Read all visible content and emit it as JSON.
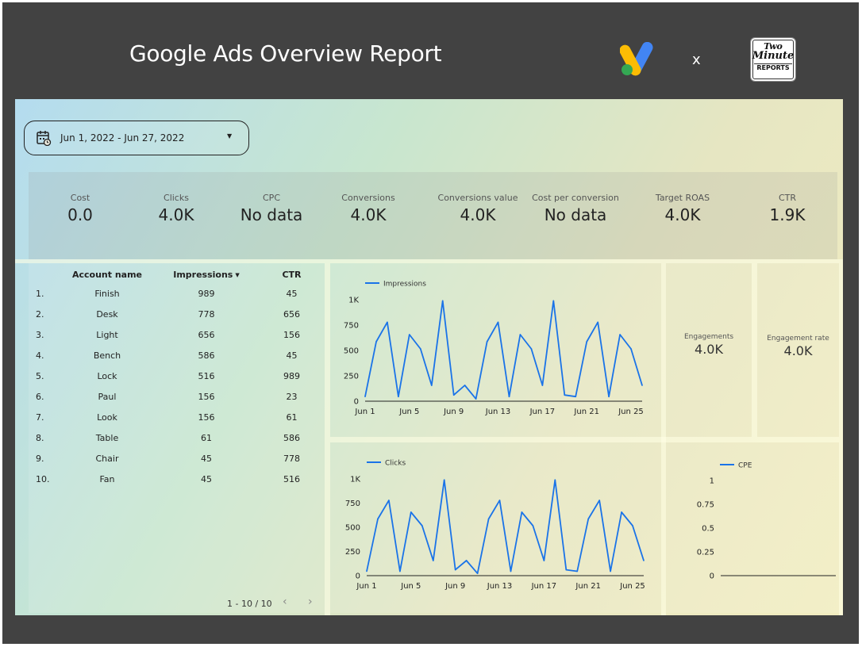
{
  "header": {
    "title": "Google Ads Overview Report",
    "separator": "x",
    "partner_logo": {
      "line1": "Two",
      "line2": "Minute",
      "line3": "REPORTS"
    }
  },
  "date_range": {
    "label": "Jun 1, 2022 - Jun 27, 2022"
  },
  "kpis": [
    {
      "label": "Cost",
      "value": "0.0"
    },
    {
      "label": "Clicks",
      "value": "4.0K"
    },
    {
      "label": "CPC",
      "value": "No data"
    },
    {
      "label": "Conversions",
      "value": "4.0K"
    },
    {
      "label": "Conversions value",
      "value": "4.0K"
    },
    {
      "label": "Cost per conversion",
      "value": "No data"
    },
    {
      "label": "Target ROAS",
      "value": "4.0K"
    },
    {
      "label": "CTR",
      "value": "1.9K"
    }
  ],
  "table": {
    "headers": {
      "account": "Account name",
      "impressions": "Impressions",
      "ctr": "CTR"
    },
    "rows": [
      {
        "idx": "1.",
        "name": "Finish",
        "impressions": "989",
        "ctr": "45"
      },
      {
        "idx": "2.",
        "name": "Desk",
        "impressions": "778",
        "ctr": "656"
      },
      {
        "idx": "3.",
        "name": "Light",
        "impressions": "656",
        "ctr": "156"
      },
      {
        "idx": "4.",
        "name": "Bench",
        "impressions": "586",
        "ctr": "45"
      },
      {
        "idx": "5.",
        "name": "Lock",
        "impressions": "516",
        "ctr": "989"
      },
      {
        "idx": "6.",
        "name": "Paul",
        "impressions": "156",
        "ctr": "23"
      },
      {
        "idx": "7.",
        "name": "Look",
        "impressions": "156",
        "ctr": "61"
      },
      {
        "idx": "8.",
        "name": "Table",
        "impressions": "61",
        "ctr": "586"
      },
      {
        "idx": "9.",
        "name": "Chair",
        "impressions": "45",
        "ctr": "778"
      },
      {
        "idx": "10.",
        "name": "Fan",
        "impressions": "45",
        "ctr": "516"
      }
    ],
    "pagination": "1 - 10 / 10"
  },
  "engagements": {
    "label": "Engagements",
    "value": "4.0K"
  },
  "engagement_rate": {
    "label": "Engagement rate",
    "value": "4.0K"
  },
  "colors": {
    "line": "#1a73e8",
    "frame": "#424242"
  },
  "chart_data": [
    {
      "type": "line",
      "series": [
        {
          "name": "Impressions",
          "values": [
            45,
            586,
            778,
            45,
            656,
            516,
            156,
            989,
            61,
            156,
            23,
            586,
            778,
            45,
            656,
            516,
            156,
            989,
            61,
            45,
            586,
            778,
            45,
            656,
            516,
            156
          ]
        }
      ],
      "x": [
        "Jun 1",
        "Jun 2",
        "Jun 3",
        "Jun 4",
        "Jun 5",
        "Jun 6",
        "Jun 7",
        "Jun 8",
        "Jun 9",
        "Jun 10",
        "Jun 11",
        "Jun 12",
        "Jun 13",
        "Jun 14",
        "Jun 15",
        "Jun 16",
        "Jun 17",
        "Jun 18",
        "Jun 19",
        "Jun 20",
        "Jun 21",
        "Jun 22",
        "Jun 23",
        "Jun 24",
        "Jun 25",
        "Jun 26"
      ],
      "x_tick_labels": [
        "Jun 1",
        "Jun 5",
        "Jun 9",
        "Jun 13",
        "Jun 17",
        "Jun 21",
        "Jun 25"
      ],
      "y_tick_labels": [
        "0",
        "250",
        "500",
        "750",
        "1K"
      ],
      "ylim": [
        0,
        1000
      ],
      "legend": "top-left",
      "grid": false
    },
    {
      "type": "line",
      "series": [
        {
          "name": "Clicks",
          "values": [
            45,
            586,
            778,
            45,
            656,
            516,
            156,
            989,
            61,
            156,
            23,
            586,
            778,
            45,
            656,
            516,
            156,
            989,
            61,
            45,
            586,
            778,
            45,
            656,
            516,
            156
          ]
        }
      ],
      "x": [
        "Jun 1",
        "Jun 2",
        "Jun 3",
        "Jun 4",
        "Jun 5",
        "Jun 6",
        "Jun 7",
        "Jun 8",
        "Jun 9",
        "Jun 10",
        "Jun 11",
        "Jun 12",
        "Jun 13",
        "Jun 14",
        "Jun 15",
        "Jun 16",
        "Jun 17",
        "Jun 18",
        "Jun 19",
        "Jun 20",
        "Jun 21",
        "Jun 22",
        "Jun 23",
        "Jun 24",
        "Jun 25",
        "Jun 26"
      ],
      "x_tick_labels": [
        "Jun 1",
        "Jun 5",
        "Jun 9",
        "Jun 13",
        "Jun 17",
        "Jun 21",
        "Jun 25"
      ],
      "y_tick_labels": [
        "0",
        "250",
        "500",
        "750",
        "1K"
      ],
      "ylim": [
        0,
        1000
      ],
      "legend": "top-left",
      "grid": false
    },
    {
      "type": "line",
      "series": [
        {
          "name": "CPE",
          "values": []
        }
      ],
      "y_tick_labels": [
        "0",
        "0.25",
        "0.5",
        "0.75",
        "1"
      ],
      "ylim": [
        0,
        1
      ],
      "legend": "top-left",
      "grid": false
    }
  ]
}
